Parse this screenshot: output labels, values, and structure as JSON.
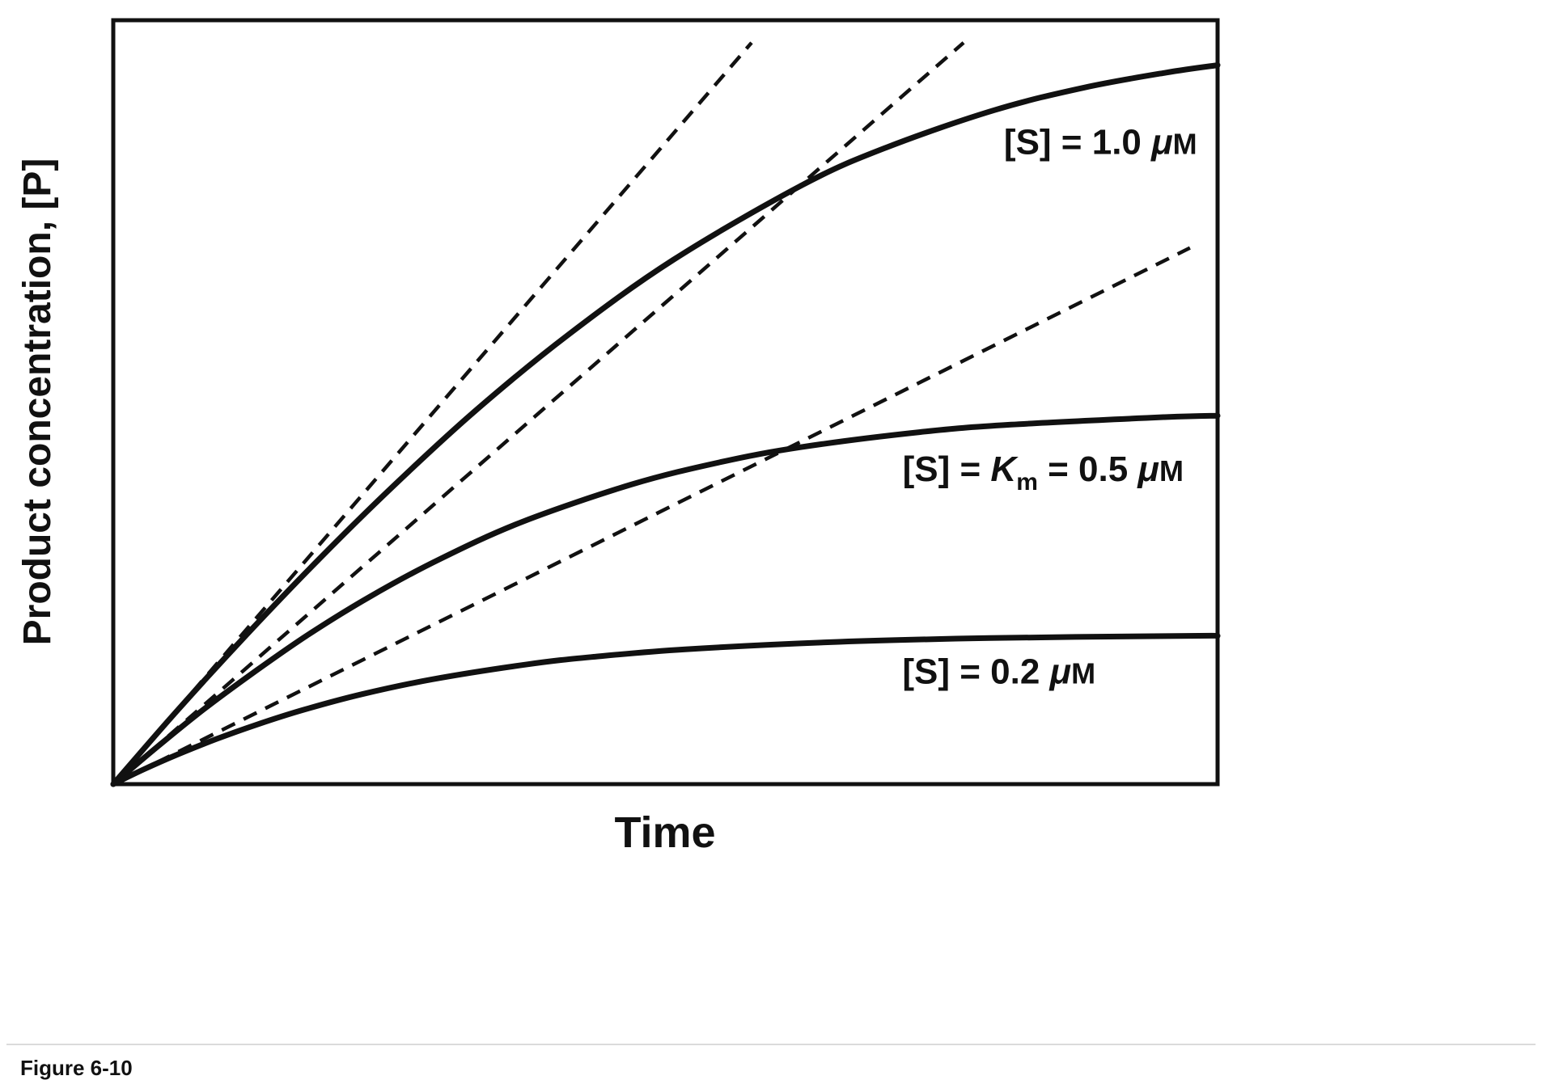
{
  "figure": {
    "caption": "Figure 6-10",
    "background": "#ffffff",
    "line_color": "#111111"
  },
  "chart_data": {
    "type": "line",
    "title": "",
    "xlabel": "Time",
    "ylabel": "Product concentration, [P]",
    "grid": false,
    "axis_ticks": "none",
    "x_range": [
      0,
      1
    ],
    "y_range": [
      0,
      1.02
    ],
    "concentration_unit": "μM",
    "km_um": 0.5,
    "legend_position": "labels-on-curves",
    "series": [
      {
        "name": "[S] = 1.0 μM",
        "s0_um": 1.0,
        "final_p_um": 0.96,
        "label_segments": [
          {
            "t": "[S] = 1.0 "
          },
          {
            "t": "μ",
            "style": "italic"
          },
          {
            "t": "M",
            "style": "small"
          }
        ],
        "label_anchor_frac": [
          0.894,
          0.825
        ],
        "points": [
          [
            0,
            0
          ],
          [
            0.059,
            0.1
          ],
          [
            0.121,
            0.2
          ],
          [
            0.186,
            0.3
          ],
          [
            0.255,
            0.4
          ],
          [
            0.329,
            0.5
          ],
          [
            0.412,
            0.6
          ],
          [
            0.507,
            0.7
          ],
          [
            0.624,
            0.8
          ],
          [
            0.7,
            0.85
          ],
          [
            0.798,
            0.9
          ],
          [
            0.879,
            0.93
          ],
          [
            0.953,
            0.95
          ],
          [
            1.0,
            0.96
          ]
        ],
        "initial_rate_tangent": {
          "slope": 1.713,
          "end": [
            0.578,
            0.99
          ]
        }
      },
      {
        "name": "[S] = Km = 0.5 μM",
        "s0_um": 0.5,
        "final_p_um": 0.492,
        "label_segments": [
          {
            "t": "[S] = "
          },
          {
            "t": "K",
            "style": "italic"
          },
          {
            "t": "m",
            "style": "sub"
          },
          {
            "t": " = 0.5 "
          },
          {
            "t": "μ",
            "style": "italic"
          },
          {
            "t": "M",
            "style": "small"
          }
        ],
        "label_anchor_frac": [
          0.842,
          0.397
        ],
        "points": [
          [
            0,
            0
          ],
          [
            0.04,
            0.05
          ],
          [
            0.082,
            0.1
          ],
          [
            0.128,
            0.15
          ],
          [
            0.177,
            0.2
          ],
          [
            0.232,
            0.25
          ],
          [
            0.295,
            0.3
          ],
          [
            0.37,
            0.35
          ],
          [
            0.469,
            0.4
          ],
          [
            0.55,
            0.43
          ],
          [
            0.623,
            0.45
          ],
          [
            0.73,
            0.47
          ],
          [
            0.813,
            0.48
          ],
          [
            0.952,
            0.49
          ],
          [
            1.0,
            0.492
          ]
        ],
        "initial_rate_tangent": {
          "slope": 1.285,
          "end": [
            0.77,
            0.99
          ]
        }
      },
      {
        "name": "[S] = 0.2 μM",
        "s0_um": 0.2,
        "final_p_um": 0.198,
        "label_segments": [
          {
            "t": "[S] = 0.2 "
          },
          {
            "t": "μ",
            "style": "italic"
          },
          {
            "t": "M",
            "style": "small"
          }
        ],
        "label_anchor_frac": [
          0.802,
          0.132
        ],
        "points": [
          [
            0,
            0
          ],
          [
            0.028,
            0.02
          ],
          [
            0.059,
            0.04
          ],
          [
            0.093,
            0.06
          ],
          [
            0.131,
            0.08
          ],
          [
            0.174,
            0.1
          ],
          [
            0.225,
            0.12
          ],
          [
            0.289,
            0.14
          ],
          [
            0.375,
            0.16
          ],
          [
            0.435,
            0.17
          ],
          [
            0.518,
            0.18
          ],
          [
            0.657,
            0.19
          ],
          [
            0.794,
            0.195
          ],
          [
            0.973,
            0.198
          ],
          [
            1.0,
            0.198
          ]
        ],
        "initial_rate_tangent": {
          "slope": 0.734,
          "end": [
            0.975,
            0.716
          ]
        }
      }
    ]
  }
}
